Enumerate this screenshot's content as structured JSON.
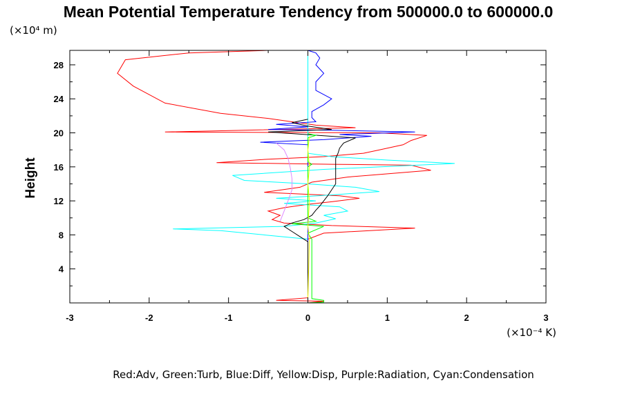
{
  "chart_data": {
    "type": "line",
    "title": "Mean Potential Temperature Tendency from 500000.0 to 600000.0",
    "ylabel": "Height",
    "y_unit_label": "(×10⁴ m)",
    "x_unit_label": "(×10⁻⁴ K)",
    "legend_text": "Red:Adv, Green:Turb, Blue:Diff, Yellow:Disp, Purple:Radiation, Cyan:Condensation",
    "xlim": [
      -3,
      3
    ],
    "ylim": [
      0,
      29.7
    ],
    "x_ticks": [
      "-3",
      "-2",
      "-1",
      "0",
      "1",
      "2",
      "3"
    ],
    "y_ticks": [
      "4",
      "8",
      "12",
      "16",
      "20",
      "24",
      "28"
    ],
    "colors": {
      "Adv": "#ff0000",
      "Turb": "#00ff00",
      "Diff": "#0000ff",
      "Disp": "#ffff00",
      "Radiation": "#dd88ff",
      "Condensation": "#00ffff",
      "Total": "#000000"
    },
    "series": [
      {
        "key": "Adv",
        "points": [
          [
            0,
            0
          ],
          [
            0.2,
            0.2
          ],
          [
            -0.4,
            0.3
          ],
          [
            0,
            0.6
          ],
          [
            0,
            7.5
          ],
          [
            0.2,
            8.2
          ],
          [
            1.35,
            8.8
          ],
          [
            0.3,
            9.1
          ],
          [
            -0.3,
            9.4
          ],
          [
            -0.45,
            9.8
          ],
          [
            -0.35,
            10.3
          ],
          [
            -0.5,
            10.8
          ],
          [
            -0.3,
            11.2
          ],
          [
            0,
            11.6
          ],
          [
            0.3,
            11.9
          ],
          [
            0.65,
            12.3
          ],
          [
            0.4,
            12.6
          ],
          [
            -0.55,
            13.0
          ],
          [
            -0.1,
            13.6
          ],
          [
            0.05,
            14.2
          ],
          [
            0.5,
            14.8
          ],
          [
            1.55,
            15.6
          ],
          [
            1.3,
            16.2
          ],
          [
            0.3,
            16.3
          ],
          [
            -1.15,
            16.5
          ],
          [
            -0.5,
            16.9
          ],
          [
            0.2,
            17.2
          ],
          [
            0.7,
            17.6
          ],
          [
            0.9,
            18.0
          ],
          [
            1.2,
            18.6
          ],
          [
            1.3,
            19.1
          ],
          [
            1.5,
            19.7
          ],
          [
            0.9,
            20.0
          ],
          [
            -1.8,
            20.1
          ],
          [
            0.6,
            20.6
          ],
          [
            0.1,
            20.9
          ],
          [
            -0.2,
            21.3
          ],
          [
            -0.5,
            21.7
          ],
          [
            -1.1,
            22.3
          ],
          [
            -1.8,
            23.5
          ],
          [
            -2.2,
            25.5
          ],
          [
            -2.4,
            27.0
          ],
          [
            -2.3,
            28.6
          ],
          [
            -1.5,
            29.4
          ],
          [
            -0.5,
            29.7
          ],
          [
            0.1,
            29.7
          ]
        ]
      },
      {
        "key": "Condensation",
        "points": [
          [
            0,
            0
          ],
          [
            0,
            7.5
          ],
          [
            -1.1,
            8.5
          ],
          [
            -1.7,
            8.7
          ],
          [
            -0.3,
            9.0
          ],
          [
            0.1,
            9.4
          ],
          [
            0.35,
            9.9
          ],
          [
            0.2,
            10.3
          ],
          [
            0.5,
            10.8
          ],
          [
            0.4,
            11.3
          ],
          [
            -0.3,
            11.7
          ],
          [
            0.1,
            12.0
          ],
          [
            -0.4,
            12.3
          ],
          [
            0.3,
            12.7
          ],
          [
            0.9,
            13.1
          ],
          [
            0.6,
            13.6
          ],
          [
            0.0,
            14.0
          ],
          [
            -0.8,
            14.4
          ],
          [
            -0.95,
            15.0
          ],
          [
            0.2,
            15.7
          ],
          [
            1.85,
            16.4
          ],
          [
            1.0,
            16.8
          ],
          [
            0.3,
            17.2
          ],
          [
            0,
            17.6
          ],
          [
            0,
            29.7
          ]
        ]
      },
      {
        "key": "Diff",
        "points": [
          [
            0,
            0
          ],
          [
            0,
            18.6
          ],
          [
            -0.6,
            18.9
          ],
          [
            0.2,
            19.2
          ],
          [
            0.8,
            19.6
          ],
          [
            0.4,
            19.8
          ],
          [
            1.35,
            20.1
          ],
          [
            0.3,
            20.3
          ],
          [
            -0.5,
            20.4
          ],
          [
            0,
            20.7
          ],
          [
            -0.4,
            21.0
          ],
          [
            0.1,
            21.3
          ],
          [
            0.05,
            21.8
          ],
          [
            0.05,
            22.5
          ],
          [
            0.2,
            23.3
          ],
          [
            0.3,
            24.0
          ],
          [
            0.1,
            25.0
          ],
          [
            0.1,
            26.0
          ],
          [
            0.2,
            27.0
          ],
          [
            0.1,
            28.0
          ],
          [
            0.15,
            28.8
          ],
          [
            0.1,
            29.4
          ],
          [
            0,
            29.7
          ]
        ]
      },
      {
        "key": "Total",
        "points": [
          [
            0,
            0
          ],
          [
            0,
            7.2
          ],
          [
            -0.1,
            7.8
          ],
          [
            -0.2,
            8.4
          ],
          [
            -0.3,
            9.0
          ],
          [
            -0.2,
            9.4
          ],
          [
            -0.05,
            9.8
          ],
          [
            0.05,
            10.3
          ],
          [
            0.1,
            10.9
          ],
          [
            0.15,
            11.4
          ],
          [
            0.2,
            12.0
          ],
          [
            0.25,
            12.6
          ],
          [
            0.3,
            13.3
          ],
          [
            0.35,
            14.0
          ],
          [
            0.35,
            14.8
          ],
          [
            0.35,
            15.6
          ],
          [
            0.35,
            16.3
          ],
          [
            0.35,
            17.0
          ],
          [
            0.38,
            17.6
          ],
          [
            0.4,
            18.2
          ],
          [
            0.45,
            18.8
          ],
          [
            0.6,
            19.4
          ],
          [
            -0.5,
            20.1
          ],
          [
            0.3,
            20.4
          ],
          [
            0,
            20.8
          ],
          [
            -0.2,
            21.2
          ],
          [
            0,
            21.6
          ]
        ]
      },
      {
        "key": "Radiation",
        "points": [
          [
            -0.35,
            9.6
          ],
          [
            -0.3,
            10.8
          ],
          [
            -0.25,
            12.0
          ],
          [
            -0.2,
            13.3
          ],
          [
            -0.2,
            14.6
          ],
          [
            -0.22,
            15.8
          ],
          [
            -0.25,
            17.0
          ],
          [
            -0.3,
            18.0
          ],
          [
            -0.4,
            18.8
          ]
        ]
      },
      {
        "key": "Turb",
        "points": [
          [
            0,
            0
          ],
          [
            0.2,
            0.1
          ],
          [
            0.2,
            0.3
          ],
          [
            0.05,
            0.5
          ],
          [
            0.05,
            7.5
          ],
          [
            0,
            8.2
          ],
          [
            0.2,
            9.0
          ],
          [
            -0.2,
            9.3
          ],
          [
            0.1,
            9.6
          ],
          [
            0,
            10.0
          ],
          [
            0,
            16.0
          ],
          [
            0.05,
            16.3
          ],
          [
            0,
            16.6
          ],
          [
            0,
            19.4
          ],
          [
            0.1,
            19.7
          ],
          [
            0,
            19.9
          ]
        ]
      },
      {
        "key": "Disp",
        "points": [
          [
            0,
            0.6
          ],
          [
            0.02,
            7.5
          ],
          [
            0.0,
            9.0
          ],
          [
            0.02,
            12.0
          ],
          [
            0.0,
            14.0
          ],
          [
            0.02,
            16.0
          ],
          [
            0.0,
            18.0
          ],
          [
            0.02,
            19.6
          ]
        ]
      }
    ]
  }
}
